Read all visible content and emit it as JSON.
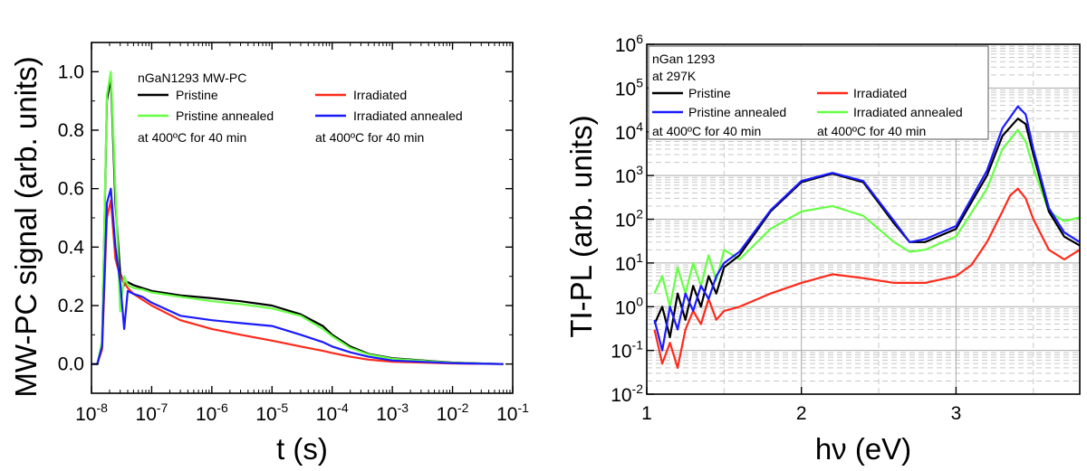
{
  "chart_data": [
    {
      "type": "line",
      "xscale": "log",
      "xlabel": "t (s)",
      "ylabel": "MW-PC signal (arb. units)",
      "xlim": [
        1e-08,
        0.1
      ],
      "ylim": [
        -0.1,
        1.1
      ],
      "xticks": [
        1e-08,
        1e-07,
        1e-06,
        1e-05,
        0.0001,
        0.001,
        0.01,
        0.1
      ],
      "xtick_labels": [
        {
          "base": "10",
          "exp": "-8"
        },
        {
          "base": "10",
          "exp": "-7"
        },
        {
          "base": "10",
          "exp": "-6"
        },
        {
          "base": "10",
          "exp": "-5"
        },
        {
          "base": "10",
          "exp": "-4"
        },
        {
          "base": "10",
          "exp": "-3"
        },
        {
          "base": "10",
          "exp": "-2"
        },
        {
          "base": "10",
          "exp": "-1"
        }
      ],
      "yticks": [
        0.0,
        0.2,
        0.4,
        0.6,
        0.8,
        1.0
      ],
      "ytick_labels": [
        "0.0",
        "0.2",
        "0.4",
        "0.6",
        "0.8",
        "1.0"
      ],
      "legend": {
        "header": "nGaN1293 MW-PC",
        "entries": [
          {
            "label": "Pristine",
            "color": "#000000"
          },
          {
            "label": "Irradiated",
            "color": "#ff2a1a"
          },
          {
            "label": "Pristine annealed",
            "color": "#66ff44"
          },
          {
            "label": "Irradiated annealed",
            "color": "#1a1aff"
          }
        ],
        "notes": [
          "at 400ºC for 40 min",
          "at 400ºC for 40 min"
        ],
        "placement": "top-right"
      },
      "series": [
        {
          "name": "Pristine",
          "color": "#000000",
          "x": [
            1e-08,
            1.25e-08,
            1.5e-08,
            1.8e-08,
            2.1e-08,
            2.5e-08,
            3e-08,
            3.5e-08,
            4e-08,
            5e-08,
            7e-08,
            1e-07,
            3e-07,
            1e-06,
            3e-06,
            1e-05,
            3e-05,
            7e-05,
            0.0001,
            0.0002,
            0.0004,
            0.001,
            0.01,
            0.07
          ],
          "y": [
            0.0,
            0.0,
            0.07,
            0.9,
            0.98,
            0.55,
            0.31,
            0.27,
            0.28,
            0.27,
            0.26,
            0.25,
            0.235,
            0.225,
            0.215,
            0.2,
            0.17,
            0.13,
            0.1,
            0.06,
            0.035,
            0.02,
            0.005,
            0.0
          ]
        },
        {
          "name": "Irradiated",
          "color": "#ff2a1a",
          "x": [
            1e-08,
            1.25e-08,
            1.5e-08,
            1.8e-08,
            2.1e-08,
            2.5e-08,
            3e-08,
            4e-08,
            5e-08,
            7e-08,
            1e-07,
            3e-07,
            1e-06,
            3e-06,
            1e-05,
            3e-05,
            7e-05,
            0.0001,
            0.0002,
            0.0004,
            0.001,
            0.01,
            0.07
          ],
          "y": [
            0.0,
            0.0,
            0.05,
            0.5,
            0.56,
            0.36,
            0.3,
            0.26,
            0.24,
            0.22,
            0.2,
            0.15,
            0.12,
            0.1,
            0.08,
            0.06,
            0.045,
            0.038,
            0.025,
            0.015,
            0.008,
            0.002,
            0.0
          ]
        },
        {
          "name": "Pristine annealed",
          "color": "#66ff44",
          "x": [
            1e-08,
            1.25e-08,
            1.5e-08,
            1.8e-08,
            2.1e-08,
            2.5e-08,
            3e-08,
            3.5e-08,
            4e-08,
            5e-08,
            7e-08,
            1e-07,
            3e-07,
            1e-06,
            3e-06,
            1e-05,
            3e-05,
            7e-05,
            0.0001,
            0.0002,
            0.0004,
            0.001,
            0.01,
            0.07
          ],
          "y": [
            0.0,
            0.0,
            0.08,
            0.92,
            1.0,
            0.6,
            0.18,
            0.3,
            0.27,
            0.26,
            0.255,
            0.245,
            0.23,
            0.215,
            0.205,
            0.19,
            0.165,
            0.12,
            0.095,
            0.055,
            0.033,
            0.018,
            0.004,
            0.0
          ]
        },
        {
          "name": "Irradiated annealed",
          "color": "#1a1aff",
          "x": [
            1e-08,
            1.25e-08,
            1.5e-08,
            1.8e-08,
            2.1e-08,
            2.5e-08,
            3e-08,
            3.5e-08,
            4e-08,
            5e-08,
            7e-08,
            1e-07,
            3e-07,
            1e-06,
            3e-06,
            1e-05,
            3e-05,
            7e-05,
            0.0001,
            0.0002,
            0.0004,
            0.001,
            0.01,
            0.07
          ],
          "y": [
            0.0,
            0.0,
            0.06,
            0.55,
            0.6,
            0.4,
            0.28,
            0.12,
            0.25,
            0.24,
            0.23,
            0.21,
            0.165,
            0.15,
            0.14,
            0.13,
            0.1,
            0.075,
            0.06,
            0.04,
            0.025,
            0.012,
            0.003,
            0.0
          ]
        }
      ]
    },
    {
      "type": "line",
      "yscale": "log",
      "xlabel": "hν (eV)",
      "ylabel": "TI-PL (arb. units)",
      "xlim": [
        1.0,
        3.8
      ],
      "ylim": [
        0.01,
        1000000
      ],
      "grid": true,
      "xticks": [
        1,
        2,
        3
      ],
      "xtick_labels": [
        "1",
        "2",
        "3"
      ],
      "yticks": [
        0.01,
        0.1,
        1,
        10,
        100,
        1000,
        10000,
        100000,
        1000000
      ],
      "ytick_labels": [
        {
          "base": "10",
          "exp": "-2"
        },
        {
          "base": "10",
          "exp": "-1"
        },
        {
          "base": "10",
          "exp": "0"
        },
        {
          "base": "10",
          "exp": "1"
        },
        {
          "base": "10",
          "exp": "2"
        },
        {
          "base": "10",
          "exp": "3"
        },
        {
          "base": "10",
          "exp": "4"
        },
        {
          "base": "10",
          "exp": "5"
        },
        {
          "base": "10",
          "exp": "6"
        }
      ],
      "legend": {
        "header": [
          "nGan 1293",
          "at 297K"
        ],
        "entries": [
          {
            "label": "Pristine",
            "color": "#000000"
          },
          {
            "label": "Irradiated",
            "color": "#ff2a1a"
          },
          {
            "label": "Pristine annealed",
            "color": "#1a1aff"
          },
          {
            "label": "Irradiated annealed",
            "color": "#66ff44"
          }
        ],
        "notes": [
          "at 400ºC for 40 min",
          "at 400ºC for 40 min"
        ],
        "placement": "top-left"
      },
      "series": [
        {
          "name": "Irradiated",
          "color": "#ff2a1a",
          "x": [
            1.05,
            1.1,
            1.15,
            1.2,
            1.25,
            1.3,
            1.35,
            1.4,
            1.45,
            1.5,
            1.6,
            1.8,
            2.0,
            2.2,
            2.4,
            2.6,
            2.8,
            3.0,
            3.1,
            3.2,
            3.3,
            3.35,
            3.4,
            3.45,
            3.5,
            3.6,
            3.7,
            3.8
          ],
          "y": [
            0.3,
            0.05,
            0.15,
            0.04,
            0.3,
            0.8,
            0.4,
            1.5,
            0.5,
            0.8,
            1.0,
            2.0,
            3.5,
            5.5,
            4.5,
            3.5,
            3.5,
            5.0,
            9,
            30,
            150,
            350,
            500,
            300,
            100,
            20,
            12,
            20
          ]
        },
        {
          "name": "Irradiated annealed",
          "color": "#66ff44",
          "x": [
            1.05,
            1.1,
            1.15,
            1.2,
            1.25,
            1.3,
            1.35,
            1.4,
            1.45,
            1.5,
            1.6,
            1.8,
            2.0,
            2.2,
            2.4,
            2.6,
            2.7,
            2.8,
            3.0,
            3.2,
            3.3,
            3.4,
            3.45,
            3.5,
            3.6,
            3.7,
            3.8
          ],
          "y": [
            2,
            5,
            1,
            8,
            2,
            10,
            3,
            15,
            4,
            20,
            12,
            60,
            150,
            200,
            120,
            30,
            18,
            20,
            40,
            500,
            4000,
            11000,
            6000,
            1500,
            150,
            90,
            110
          ]
        },
        {
          "name": "Pristine",
          "color": "#000000",
          "x": [
            1.05,
            1.1,
            1.15,
            1.2,
            1.25,
            1.3,
            1.35,
            1.4,
            1.45,
            1.5,
            1.6,
            1.8,
            2.0,
            2.2,
            2.4,
            2.6,
            2.7,
            2.8,
            3.0,
            3.2,
            3.3,
            3.4,
            3.45,
            3.5,
            3.6,
            3.7,
            3.8
          ],
          "y": [
            0.4,
            1,
            0.2,
            2,
            0.5,
            3,
            1,
            5,
            2,
            8,
            15,
            150,
            700,
            1100,
            700,
            80,
            30,
            30,
            60,
            1000,
            8000,
            20000,
            15000,
            3000,
            150,
            40,
            25
          ]
        },
        {
          "name": "Pristine annealed",
          "color": "#1a1aff",
          "x": [
            1.05,
            1.1,
            1.15,
            1.2,
            1.25,
            1.3,
            1.35,
            1.4,
            1.45,
            1.5,
            1.6,
            1.8,
            2.0,
            2.2,
            2.4,
            2.6,
            2.7,
            2.8,
            3.0,
            3.2,
            3.3,
            3.4,
            3.45,
            3.5,
            3.6,
            3.7,
            3.8
          ],
          "y": [
            0.5,
            0.1,
            1,
            0.3,
            2,
            0.8,
            3,
            1.5,
            5,
            10,
            18,
            160,
            750,
            1150,
            750,
            90,
            30,
            35,
            70,
            1300,
            12000,
            38000,
            25000,
            4000,
            180,
            50,
            30
          ]
        }
      ]
    }
  ]
}
